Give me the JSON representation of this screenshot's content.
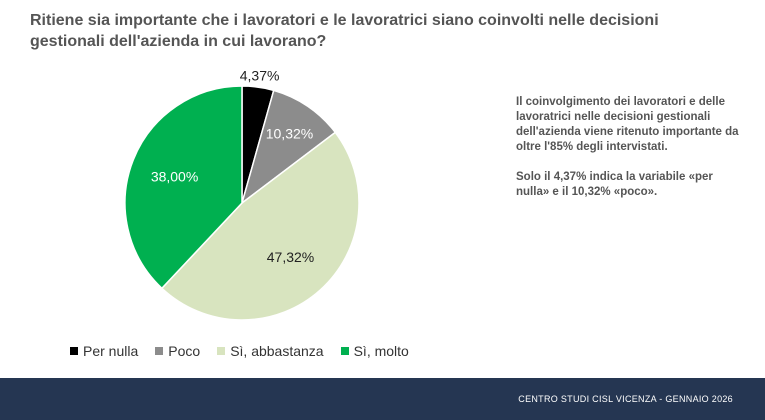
{
  "chart_data": {
    "type": "pie",
    "title": "Ritiene sia importante che i lavoratori e le lavoratrici siano coinvolti nelle decisioni gestionali dell'azienda in cui lavorano?",
    "categories": [
      "Per nulla",
      "Poco",
      "Sì, abbastanza",
      "Sì, molto"
    ],
    "values": [
      4.37,
      10.32,
      47.32,
      38.0
    ],
    "labels": [
      "4,37%",
      "10,32%",
      "47,32%",
      "38,00%"
    ],
    "colors": [
      "#000000",
      "#8c8c8c",
      "#d8e4bf",
      "#00b050"
    ],
    "label_colors": [
      "#222222",
      "#ffffff",
      "#222222",
      "#ffffff"
    ],
    "legend_position": "bottom"
  },
  "note": {
    "paragraph1": "Il coinvolgimento dei lavoratori e delle lavoratrici nelle decisioni gestionali dell'azienda viene ritenuto importante da oltre l'85% degli intervistati.",
    "paragraph2": "Solo il 4,37% indica la variabile «per nulla» e il 10,32% «poco»."
  },
  "footer": {
    "text": "CENTRO STUDI CISL VICENZA - GENNAIO 2026"
  }
}
